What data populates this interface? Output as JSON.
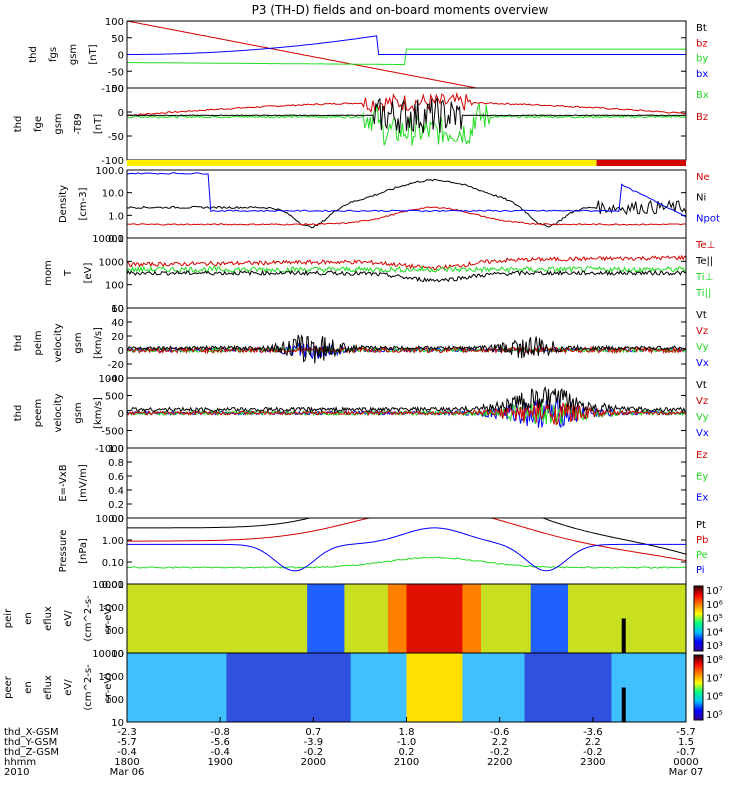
{
  "title": "P3 (TH-D) fields and on-board moments overview",
  "colors": {
    "black": "#000000",
    "red": "#d40000",
    "green": "#22dd22",
    "blue": "#0000ff",
    "yellow": "#ffee00"
  },
  "chart_data": [
    {
      "type": "line",
      "id": "fgs",
      "ylabel": [
        "thd",
        "fgs",
        "gsm",
        "[nT]"
      ],
      "ylim": [
        -100,
        100
      ],
      "yticks": [
        "100",
        "50",
        "0",
        "-50",
        "-100"
      ],
      "legend": [
        {
          "name": "Bt",
          "color": "black"
        },
        {
          "name": "bz",
          "color": "red"
        },
        {
          "name": "by",
          "color": "green"
        },
        {
          "name": "bx",
          "color": "blue"
        }
      ]
    },
    {
      "type": "line",
      "id": "fge",
      "ylabel": [
        "thd",
        "fge",
        "gsm",
        "-T89",
        "[nT]"
      ],
      "ylim": [
        -130,
        80
      ],
      "yticks": [
        "50",
        "0",
        "-50",
        "-100"
      ],
      "legend": [
        {
          "name": "Bx",
          "color": "green"
        },
        {
          "name": "Bz",
          "color": "red"
        }
      ]
    },
    {
      "type": "bar",
      "id": "mode",
      "note": "mode bar",
      "segments": [
        {
          "color": "yellow",
          "from": 0,
          "to": 0.84
        },
        {
          "color": "red",
          "from": 0.84,
          "to": 1
        }
      ]
    },
    {
      "type": "line",
      "id": "density",
      "ylabel": [
        "Density",
        "[cm-3]"
      ],
      "scale": "log",
      "ylim": [
        0.1,
        100
      ],
      "yticks": [
        "100.0",
        "10.0",
        "1.0",
        "0.1"
      ],
      "legend": [
        {
          "name": "Ne",
          "color": "red"
        },
        {
          "name": "Ni",
          "color": "black"
        },
        {
          "name": "Npot",
          "color": "blue"
        }
      ]
    },
    {
      "type": "line",
      "id": "temp",
      "ylabel": [
        "mom",
        "T",
        "[eV]"
      ],
      "scale": "log",
      "ylim": [
        10,
        10000
      ],
      "yticks": [
        "10000",
        "1000",
        "100",
        "10"
      ],
      "legend": [
        {
          "name": "Te⊥",
          "color": "red"
        },
        {
          "name": "Te||",
          "color": "black"
        },
        {
          "name": "Ti⊥",
          "color": "green"
        },
        {
          "name": "Ti||",
          "color": "green"
        }
      ]
    },
    {
      "type": "line",
      "id": "peim_vel",
      "ylabel": [
        "thd",
        "peim",
        "velocity",
        "gsm",
        "[km/s]"
      ],
      "ylim": [
        -40,
        60
      ],
      "yticks": [
        "60",
        "40",
        "20",
        "0",
        "-20",
        "-40"
      ],
      "legend": [
        {
          "name": "Vt",
          "color": "black"
        },
        {
          "name": "Vz",
          "color": "red"
        },
        {
          "name": "Vy",
          "color": "green"
        },
        {
          "name": "Vx",
          "color": "blue"
        }
      ]
    },
    {
      "type": "line",
      "id": "peem_vel",
      "ylabel": [
        "thd",
        "peem",
        "velocity",
        "gsm",
        "[km/s]"
      ],
      "ylim": [
        -1000,
        1000
      ],
      "yticks": [
        "1000",
        "500",
        "0",
        "-500",
        "-1000"
      ],
      "legend": [
        {
          "name": "Vt",
          "color": "black"
        },
        {
          "name": "Vz",
          "color": "red"
        },
        {
          "name": "Vy",
          "color": "green"
        },
        {
          "name": "Vx",
          "color": "blue"
        }
      ]
    },
    {
      "type": "line",
      "id": "efield",
      "ylabel": [
        "E=-VxB",
        "[mV/m]"
      ],
      "ylim": [
        0,
        1
      ],
      "yticks": [
        "1.0",
        "0.8",
        "0.6",
        "0.4",
        "0.2",
        "0.0"
      ],
      "legend": [
        {
          "name": "Ez",
          "color": "red"
        },
        {
          "name": "Ey",
          "color": "green"
        },
        {
          "name": "Ex",
          "color": "blue"
        }
      ]
    },
    {
      "type": "line",
      "id": "pressure",
      "ylabel": [
        "Pressure",
        "[nPa]"
      ],
      "scale": "log",
      "ylim": [
        0.005,
        15
      ],
      "yticks": [
        "10.00",
        "1.00",
        "0.10",
        "0.01"
      ],
      "legend": [
        {
          "name": "Pt",
          "color": "black"
        },
        {
          "name": "Pb",
          "color": "red"
        },
        {
          "name": "Pe",
          "color": "green"
        },
        {
          "name": "Pi",
          "color": "blue"
        }
      ]
    },
    {
      "type": "heatmap",
      "id": "peir",
      "ylabel": [
        "thd",
        "peir",
        "en",
        "eflux",
        "eV/",
        "(cm^2-s-",
        "sr-eV)"
      ],
      "yticks": [
        "10000",
        "1000",
        "100",
        "10"
      ],
      "colorbar": [
        "10⁷",
        "10⁶",
        "10⁵",
        "10⁴",
        "10³"
      ]
    },
    {
      "type": "heatmap",
      "id": "peer",
      "ylabel": [
        "thd",
        "peer",
        "en",
        "eflux",
        "eV/",
        "(cm^2-s-",
        "sr-eV)"
      ],
      "yticks": [
        "10000",
        "1000",
        "100",
        "10"
      ],
      "colorbar": [
        "10⁸",
        "10⁷",
        "10⁶",
        "10⁵"
      ]
    }
  ],
  "xaxis": {
    "rows": [
      {
        "label": "thd_X-GSM",
        "values": [
          "-2.3",
          "-0.8",
          "0.7",
          "1.8",
          "-0.6",
          "-3.6",
          "-5.7"
        ]
      },
      {
        "label": "thd_Y-GSM",
        "values": [
          "-5.7",
          "-5.6",
          "-3.9",
          "-1.0",
          "2.2",
          "2.2",
          "1.5"
        ]
      },
      {
        "label": "thd_Z-GSM",
        "values": [
          "-0.4",
          "-0.4",
          "-0.2",
          "0.2",
          "-0.2",
          "-0.2",
          "-0.7"
        ]
      },
      {
        "label": "hhmm",
        "values": [
          "1800",
          "1900",
          "2000",
          "2100",
          "2200",
          "2300",
          "0000"
        ]
      },
      {
        "label": "2010",
        "values": [
          "Mar 06",
          "",
          "",
          "",
          "",
          "",
          "Mar 07"
        ]
      }
    ]
  }
}
